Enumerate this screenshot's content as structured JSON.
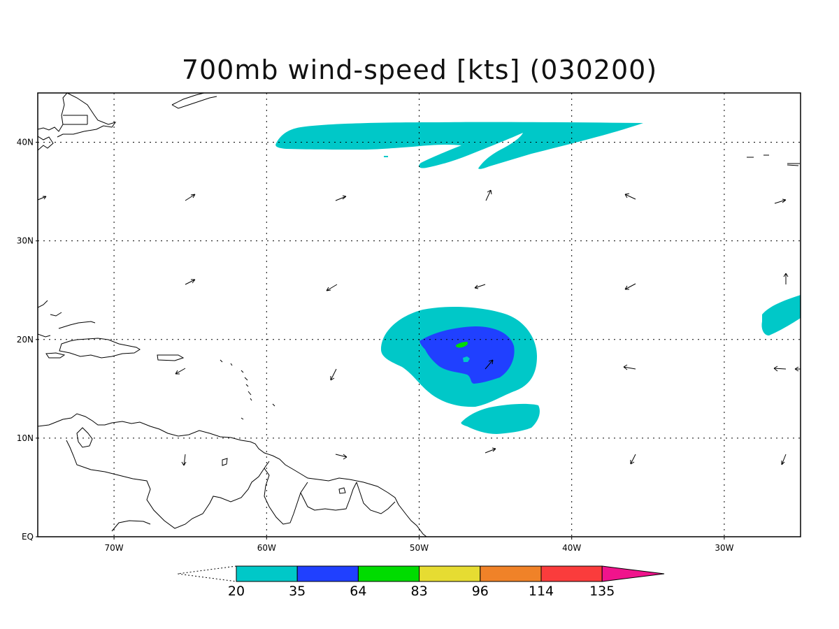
{
  "title": "700mb wind-speed [kts] (030200)",
  "map": {
    "lon_range": [
      -75,
      -25
    ],
    "lat_range": [
      0,
      45
    ],
    "grid": "dotted",
    "lat_labels": [
      "EQ",
      "10N",
      "20N",
      "30N",
      "40N"
    ],
    "lat_values": [
      0,
      10,
      20,
      30,
      40
    ],
    "lon_labels": [
      "70W",
      "60W",
      "50W",
      "40W",
      "30W"
    ],
    "lon_values": [
      -70,
      -60,
      -50,
      -40,
      -30
    ]
  },
  "colorbar": {
    "levels": [
      "20",
      "35",
      "64",
      "83",
      "96",
      "114",
      "135"
    ],
    "colors": [
      "#00c8c8",
      "#2040ff",
      "#00dc00",
      "#e6dc32",
      "#f08228",
      "#fa3c3c",
      "#f0148c"
    ],
    "below_color": "#ffffff"
  },
  "colors": {
    "contour_20": "#00c8c8",
    "contour_35": "#2040ff",
    "contour_64": "#00dc00",
    "coast": "#000000",
    "vector": "#000000"
  }
}
